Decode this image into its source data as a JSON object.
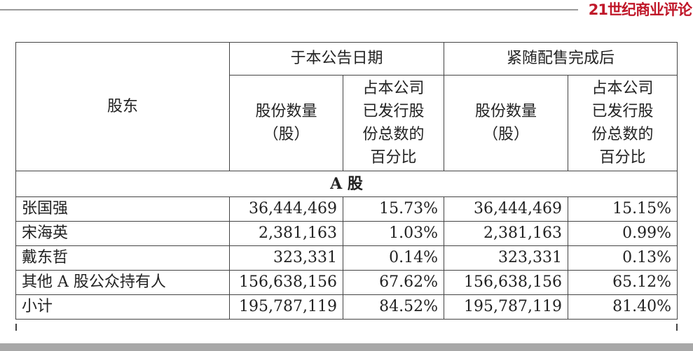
{
  "logo": "21世纪商业评论",
  "table": {
    "col_shareholder": "股东",
    "group1": "于本公告日期",
    "group2": "紧随配售完成后",
    "col_shares": "股份数量（股）",
    "col_shares_l1": "股份数量",
    "col_shares_l2": "（股）",
    "col_pct_lines": [
      "占本公司",
      "已发行股",
      "份总数的",
      "百分比"
    ],
    "section": "A 股",
    "rows": [
      {
        "name": "张国强",
        "shares1": "36,444,469",
        "pct1": "15.73%",
        "shares2": "36,444,469",
        "pct2": "15.15%"
      },
      {
        "name": "宋海英",
        "shares1": "2,381,163",
        "pct1": "1.03%",
        "shares2": "2,381,163",
        "pct2": "0.99%"
      },
      {
        "name": "戴东哲",
        "shares1": "323,331",
        "pct1": "0.14%",
        "shares2": "323,331",
        "pct2": "0.13%"
      },
      {
        "name": "其他 A 股公众持有人",
        "shares1": "156,638,156",
        "pct1": "67.62%",
        "shares2": "156,638,156",
        "pct2": "65.12%"
      },
      {
        "name": "小计",
        "shares1": "195,787,119",
        "pct1": "84.52%",
        "shares2": "195,787,119",
        "pct2": "81.40%"
      }
    ]
  }
}
